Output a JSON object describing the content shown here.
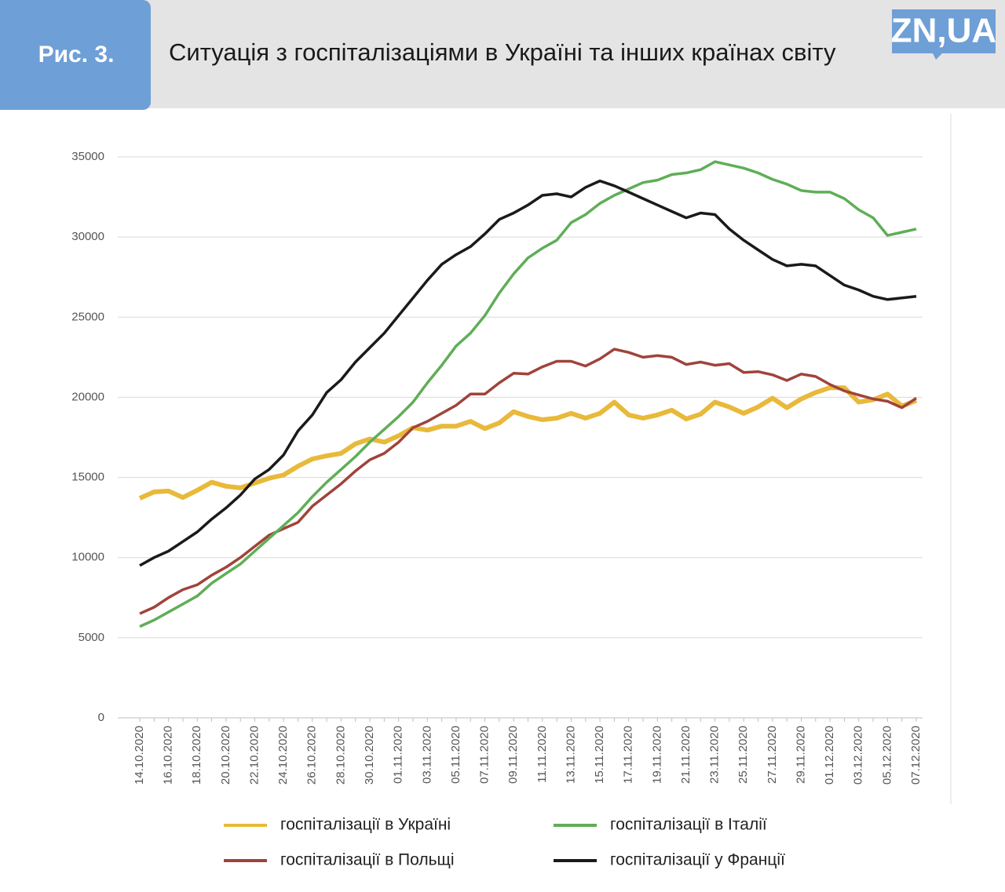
{
  "header": {
    "figure": "Рис. 3.",
    "title": "Ситуація з госпіталізаціями в Україні та інших країнах світу",
    "logo": "ZN,UA"
  },
  "chart_data": {
    "type": "line",
    "categories": [
      "14.10.2020",
      null,
      "16.10.2020",
      null,
      "18.10.2020",
      null,
      "20.10.2020",
      null,
      "22.10.2020",
      null,
      "24.10.2020",
      null,
      "26.10.2020",
      null,
      "28.10.2020",
      null,
      "30.10.2020",
      null,
      "01.11.2020",
      null,
      "03.11.2020",
      null,
      "05.11.2020",
      null,
      "07.11.2020",
      null,
      "09.11.2020",
      null,
      "11.11.2020",
      null,
      "13.11.2020",
      null,
      "15.11.2020",
      null,
      "17.11.2020",
      null,
      "19.11.2020",
      null,
      "21.11.2020",
      null,
      "23.11.2020",
      null,
      "25.11.2020",
      null,
      "27.11.2020",
      null,
      "29.11.2020",
      null,
      "01.12.2020",
      null,
      "03.12.2020",
      null,
      "05.12.2020",
      null,
      "07.12.2020"
    ],
    "series": [
      {
        "name": "госпіталізації в Україні",
        "color": "#e8b93a",
        "values": [
          13700,
          14100,
          14150,
          13750,
          14200,
          14700,
          14450,
          14350,
          14650,
          14950,
          15150,
          15700,
          16150,
          16350,
          16500,
          17100,
          17400,
          17200,
          17600,
          18100,
          17950,
          18200,
          18200,
          18500,
          18050,
          18400,
          19100,
          18800,
          18600,
          18700,
          19000,
          18700,
          19000,
          19700,
          18900,
          18700,
          18900,
          19200,
          18650,
          18950,
          19700,
          19400,
          19000,
          19400,
          19950,
          19350,
          19900,
          20300,
          20600,
          20600,
          19700,
          19850,
          20200,
          19450,
          19800
        ]
      },
      {
        "name": "госпіталізації в Польщі",
        "color": "#a0433b",
        "values": [
          6500,
          6900,
          7500,
          8000,
          8300,
          8900,
          9400,
          10000,
          10700,
          11400,
          11800,
          12200,
          13200,
          13900,
          14600,
          15400,
          16100,
          16500,
          17200,
          18100,
          18500,
          19000,
          19500,
          20200,
          20200,
          20900,
          21500,
          21450,
          21900,
          22250,
          22250,
          21950,
          22400,
          23000,
          22800,
          22500,
          22600,
          22500,
          22050,
          22200,
          22000,
          22100,
          21550,
          21600,
          21400,
          21050,
          21450,
          21300,
          20800,
          20400,
          20150,
          19900,
          19750,
          19350,
          19950
        ]
      },
      {
        "name": "госпіталізації в Італії",
        "color": "#5fae57",
        "values": [
          5700,
          6100,
          6600,
          7100,
          7600,
          8400,
          9000,
          9600,
          10400,
          11200,
          12000,
          12800,
          13800,
          14700,
          15500,
          16300,
          17200,
          18000,
          18800,
          19700,
          20900,
          22000,
          23200,
          24000,
          25100,
          26500,
          27700,
          28700,
          29300,
          29800,
          30900,
          31400,
          32100,
          32600,
          33000,
          33400,
          33550,
          33900,
          34000,
          34200,
          34700,
          34500,
          34300,
          34000,
          33600,
          33300,
          32900,
          32800,
          32800,
          32400,
          31700,
          31200,
          30100,
          30300,
          30500
        ]
      },
      {
        "name": "госпіталізації у Франції",
        "color": "#1a1a1a",
        "values": [
          9500,
          10000,
          10400,
          11000,
          11600,
          12400,
          13100,
          13900,
          14900,
          15500,
          16400,
          17900,
          18900,
          20300,
          21100,
          22200,
          23100,
          24000,
          25100,
          26200,
          27300,
          28300,
          28900,
          29400,
          30200,
          31100,
          31500,
          32000,
          32600,
          32700,
          32500,
          33100,
          33500,
          33200,
          32800,
          32400,
          32000,
          31600,
          31200,
          31500,
          31400,
          30500,
          29800,
          29200,
          28600,
          28200,
          28300,
          28200,
          27600,
          27000,
          26700,
          26300,
          26100,
          26200,
          26300
        ]
      }
    ],
    "ylim": [
      0,
      35000
    ],
    "yticks": [
      0,
      5000,
      10000,
      15000,
      20000,
      25000,
      30000,
      35000
    ],
    "grid": true,
    "legend": "bottom"
  }
}
